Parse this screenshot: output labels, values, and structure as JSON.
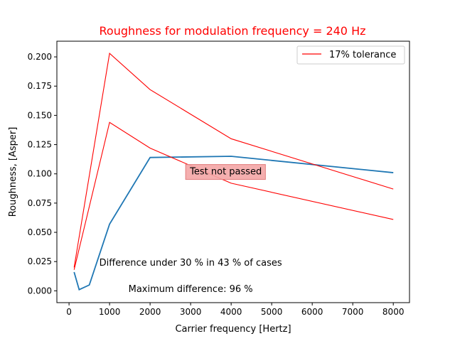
{
  "chart_data": {
    "type": "line",
    "title": "Roughness for modulation frequency = 240 Hz",
    "title_color": "#ff0000",
    "xlabel": "Carrier frequency [Hertz]",
    "ylabel": "Roughness, [Asper]",
    "xlim": [
      -300,
      8400
    ],
    "ylim": [
      -0.0101,
      0.2134
    ],
    "xticks": [
      0,
      1000,
      2000,
      3000,
      4000,
      5000,
      6000,
      7000,
      8000
    ],
    "yticks": [
      0.0,
      0.025,
      0.05,
      0.075,
      0.1,
      0.125,
      0.15,
      0.175,
      0.2
    ],
    "ytick_labels": [
      "0.000",
      "0.025",
      "0.050",
      "0.075",
      "0.100",
      "0.125",
      "0.150",
      "0.175",
      "0.200"
    ],
    "grid": false,
    "legend": {
      "position": "top-right",
      "entries": [
        {
          "label": "17% tolerance",
          "color": "#ff0000"
        }
      ]
    },
    "series": [
      {
        "role": "measured",
        "color": "#1f77b4",
        "x": [
          125,
          250,
          500,
          1000,
          2000,
          4000,
          8000
        ],
        "y": [
          0.016,
          0.001,
          0.005,
          0.057,
          0.114,
          0.115,
          0.101
        ]
      },
      {
        "name": "17% tolerance",
        "role": "upper",
        "color": "#ff0000",
        "x": [
          125,
          1000,
          2000,
          4000,
          8000
        ],
        "y": [
          0.02,
          0.203,
          0.172,
          0.13,
          0.087
        ]
      },
      {
        "role": "lower",
        "color": "#ff0000",
        "x": [
          125,
          1000,
          2000,
          4000,
          8000
        ],
        "y": [
          0.018,
          0.144,
          0.122,
          0.092,
          0.061
        ]
      }
    ],
    "annotations": [
      {
        "text": "Test not passed",
        "x": 4000,
        "y": 0.1025,
        "box_fill": "#f4a6a6",
        "box_edge": "#e07c7c"
      },
      {
        "text": "Difference under 30 % in 43 % of cases",
        "x": 3000,
        "y": 0.0245
      },
      {
        "text": "Maximum difference: 96 %",
        "x": 3000,
        "y": 0.002
      }
    ]
  }
}
